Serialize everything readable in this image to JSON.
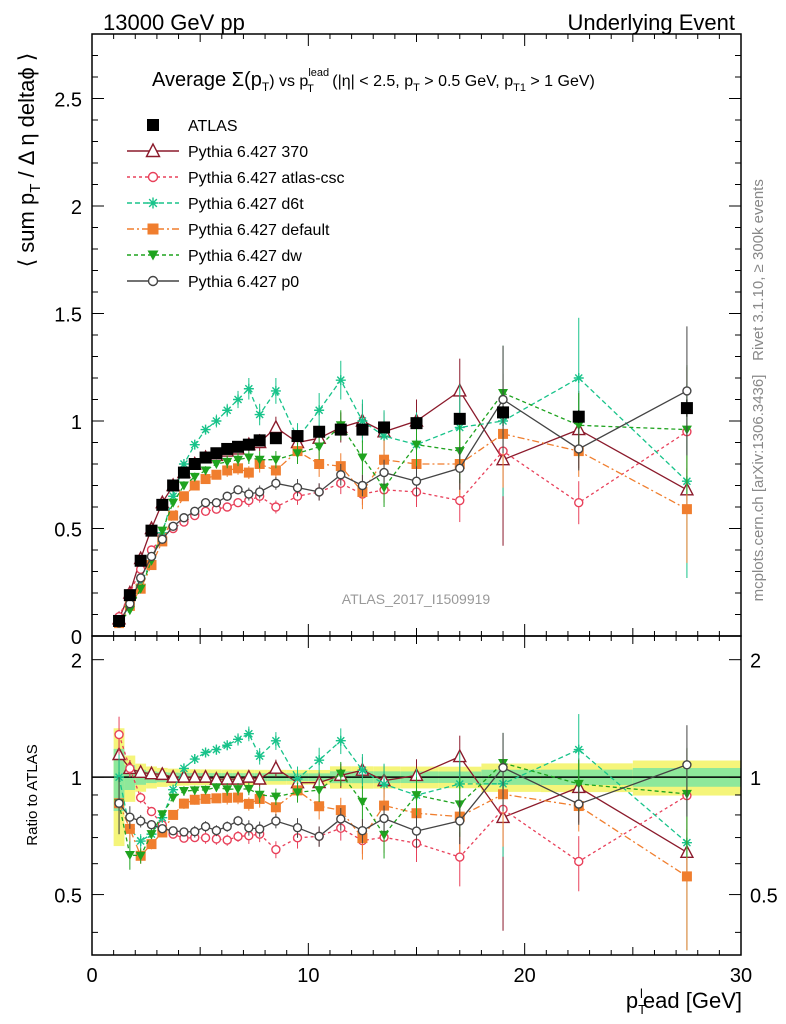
{
  "header": {
    "left": "13000 GeV pp",
    "right": "Underlying Event"
  },
  "side_labels": {
    "rivet": "Rivet 3.1.10, ≥ 300k events",
    "mcplots": "mcplots.cern.ch [arXiv:1306.3436]"
  },
  "watermark": "ATLAS_2017_I1509919",
  "title": {
    "main": "Average Σ(p",
    "main_sub": "T",
    "vs": ") vs p",
    "vs_sup": "lead",
    "vs_sub": "T",
    "cut1": " (|η| < 2.5, p",
    "cut1_sub": "T",
    "cut2": " > 0.5 GeV, p",
    "cut2_sub": "T1",
    "cut3": " > 1 GeV)"
  },
  "axes": {
    "ylabel": "⟨ sum p",
    "ylabel_sub": "T",
    "ylabel_rest": " / Δ η deltaϕ ⟩",
    "xlabel": "p",
    "xlabel_sub": "T",
    "xlabel_sup": "l",
    "xlabel_rest": "ead [GeV]",
    "ratio_ylabel": "Ratio to ATLAS"
  },
  "chart_data": {
    "type": "line",
    "xlim": [
      0,
      30
    ],
    "ylim": [
      0,
      2.8
    ],
    "ratio_ylim": [
      0.35,
      2.3
    ],
    "x_ticks": [
      "0",
      "10",
      "20",
      "30"
    ],
    "y_ticks": [
      "0",
      "0.5",
      "1",
      "1.5",
      "2",
      "2.5"
    ],
    "ratio_y_ticks": [
      "0.5",
      "1",
      "2"
    ],
    "legend_position": "top-left",
    "x": [
      1.25,
      1.75,
      2.25,
      2.75,
      3.25,
      3.75,
      4.25,
      4.75,
      5.25,
      5.75,
      6.25,
      6.75,
      7.25,
      7.75,
      8.5,
      9.5,
      10.5,
      11.5,
      12.5,
      13.5,
      15,
      17,
      19,
      22.5,
      27.5
    ],
    "series": [
      {
        "name": "ATLAS",
        "color": "#000000",
        "marker": "square-filled",
        "dash": "none",
        "values": [
          0.07,
          0.19,
          0.35,
          0.49,
          0.61,
          0.7,
          0.76,
          0.8,
          0.83,
          0.85,
          0.87,
          0.88,
          0.89,
          0.91,
          0.92,
          0.93,
          0.95,
          0.96,
          0.96,
          0.97,
          0.99,
          1.01,
          1.04,
          1.02,
          1.06
        ],
        "errors": [
          0.01,
          0.01,
          0.01,
          0.01,
          0.01,
          0.01,
          0.01,
          0.01,
          0.01,
          0.01,
          0.01,
          0.01,
          0.01,
          0.01,
          0.01,
          0.01,
          0.01,
          0.02,
          0.02,
          0.02,
          0.02,
          0.02,
          0.03,
          0.03,
          0.04
        ]
      },
      {
        "name": "Pythia 6.427 370",
        "color": "#8b1a2b",
        "marker": "triangle-open",
        "dash": "none",
        "values": [
          0.08,
          0.2,
          0.36,
          0.5,
          0.62,
          0.7,
          0.76,
          0.8,
          0.83,
          0.84,
          0.86,
          0.87,
          0.89,
          0.9,
          0.97,
          0.9,
          0.92,
          0.97,
          1.0,
          0.95,
          1.0,
          1.14,
          0.82,
          0.96,
          0.68
        ],
        "errors": [
          0.01,
          0.01,
          0.01,
          0.01,
          0.01,
          0.01,
          0.02,
          0.02,
          0.02,
          0.02,
          0.03,
          0.03,
          0.03,
          0.04,
          0.05,
          0.06,
          0.06,
          0.07,
          0.08,
          0.09,
          0.1,
          0.15,
          0.4,
          0.18,
          0.1
        ]
      },
      {
        "name": "Pythia 6.427 atlas-csc",
        "color": "#e8405a",
        "marker": "circle-open",
        "dash": "3,3",
        "values": [
          0.09,
          0.2,
          0.31,
          0.4,
          0.46,
          0.5,
          0.53,
          0.56,
          0.58,
          0.59,
          0.6,
          0.62,
          0.63,
          0.65,
          0.6,
          0.65,
          0.67,
          0.71,
          0.66,
          0.68,
          0.67,
          0.63,
          0.86,
          0.62,
          0.95
        ],
        "errors": [
          0.01,
          0.01,
          0.01,
          0.01,
          0.01,
          0.01,
          0.01,
          0.01,
          0.02,
          0.02,
          0.02,
          0.02,
          0.03,
          0.03,
          0.03,
          0.04,
          0.04,
          0.05,
          0.05,
          0.06,
          0.07,
          0.1,
          0.2,
          0.1,
          0.3
        ]
      },
      {
        "name": "Pythia 6.427 d6t",
        "color": "#18c38a",
        "marker": "star",
        "dash": "5,3",
        "values": [
          0.07,
          0.14,
          0.24,
          0.35,
          0.48,
          0.65,
          0.8,
          0.89,
          0.96,
          1.0,
          1.05,
          1.1,
          1.15,
          1.03,
          1.14,
          0.92,
          1.05,
          1.19,
          1.0,
          0.93,
          0.89,
          0.97,
          1.0,
          1.2,
          0.72
        ],
        "errors": [
          0.01,
          0.01,
          0.01,
          0.01,
          0.01,
          0.01,
          0.02,
          0.02,
          0.02,
          0.03,
          0.03,
          0.04,
          0.05,
          0.05,
          0.06,
          0.07,
          0.08,
          0.09,
          0.1,
          0.12,
          0.15,
          0.2,
          0.35,
          0.28,
          0.45
        ]
      },
      {
        "name": "Pythia 6.427 default",
        "color": "#f07e2e",
        "marker": "square-filled",
        "dash": "7,3,2,3",
        "values": [
          0.06,
          0.14,
          0.22,
          0.33,
          0.44,
          0.56,
          0.65,
          0.7,
          0.73,
          0.75,
          0.77,
          0.78,
          0.76,
          0.8,
          0.77,
          0.86,
          0.8,
          0.79,
          0.67,
          0.82,
          0.8,
          0.8,
          0.94,
          0.86,
          0.59
        ],
        "errors": [
          0.01,
          0.01,
          0.01,
          0.01,
          0.01,
          0.01,
          0.02,
          0.02,
          0.02,
          0.02,
          0.03,
          0.03,
          0.03,
          0.04,
          0.04,
          0.05,
          0.06,
          0.06,
          0.08,
          0.09,
          0.1,
          0.15,
          0.25,
          0.12,
          0.25
        ]
      },
      {
        "name": "Pythia 6.427 dw",
        "color": "#1fa31f",
        "marker": "triangle-down-filled",
        "dash": "4,3",
        "values": [
          0.06,
          0.12,
          0.22,
          0.35,
          0.49,
          0.62,
          0.7,
          0.74,
          0.77,
          0.8,
          0.81,
          0.82,
          0.83,
          0.82,
          0.82,
          0.85,
          0.88,
          0.98,
          0.83,
          0.69,
          0.89,
          0.86,
          1.13,
          0.98,
          0.96
        ],
        "errors": [
          0.01,
          0.01,
          0.01,
          0.01,
          0.01,
          0.01,
          0.02,
          0.02,
          0.02,
          0.02,
          0.03,
          0.03,
          0.03,
          0.04,
          0.04,
          0.05,
          0.06,
          0.07,
          0.08,
          0.09,
          0.1,
          0.15,
          0.22,
          0.15,
          0.3
        ]
      },
      {
        "name": "Pythia 6.427 p0",
        "color": "#444444",
        "marker": "circle-open",
        "dash": "none",
        "values": [
          0.06,
          0.15,
          0.27,
          0.37,
          0.45,
          0.51,
          0.55,
          0.58,
          0.62,
          0.62,
          0.65,
          0.68,
          0.66,
          0.67,
          0.71,
          0.69,
          0.67,
          0.75,
          0.7,
          0.76,
          0.72,
          0.78,
          1.1,
          0.87,
          1.14
        ],
        "errors": [
          0.01,
          0.01,
          0.01,
          0.01,
          0.01,
          0.01,
          0.01,
          0.02,
          0.02,
          0.02,
          0.02,
          0.02,
          0.03,
          0.03,
          0.03,
          0.04,
          0.04,
          0.05,
          0.05,
          0.06,
          0.07,
          0.1,
          0.25,
          0.1,
          0.3
        ]
      }
    ],
    "ratio_band": {
      "inner_color": "#8ee89a",
      "outer_color": "#f5f57a"
    }
  }
}
